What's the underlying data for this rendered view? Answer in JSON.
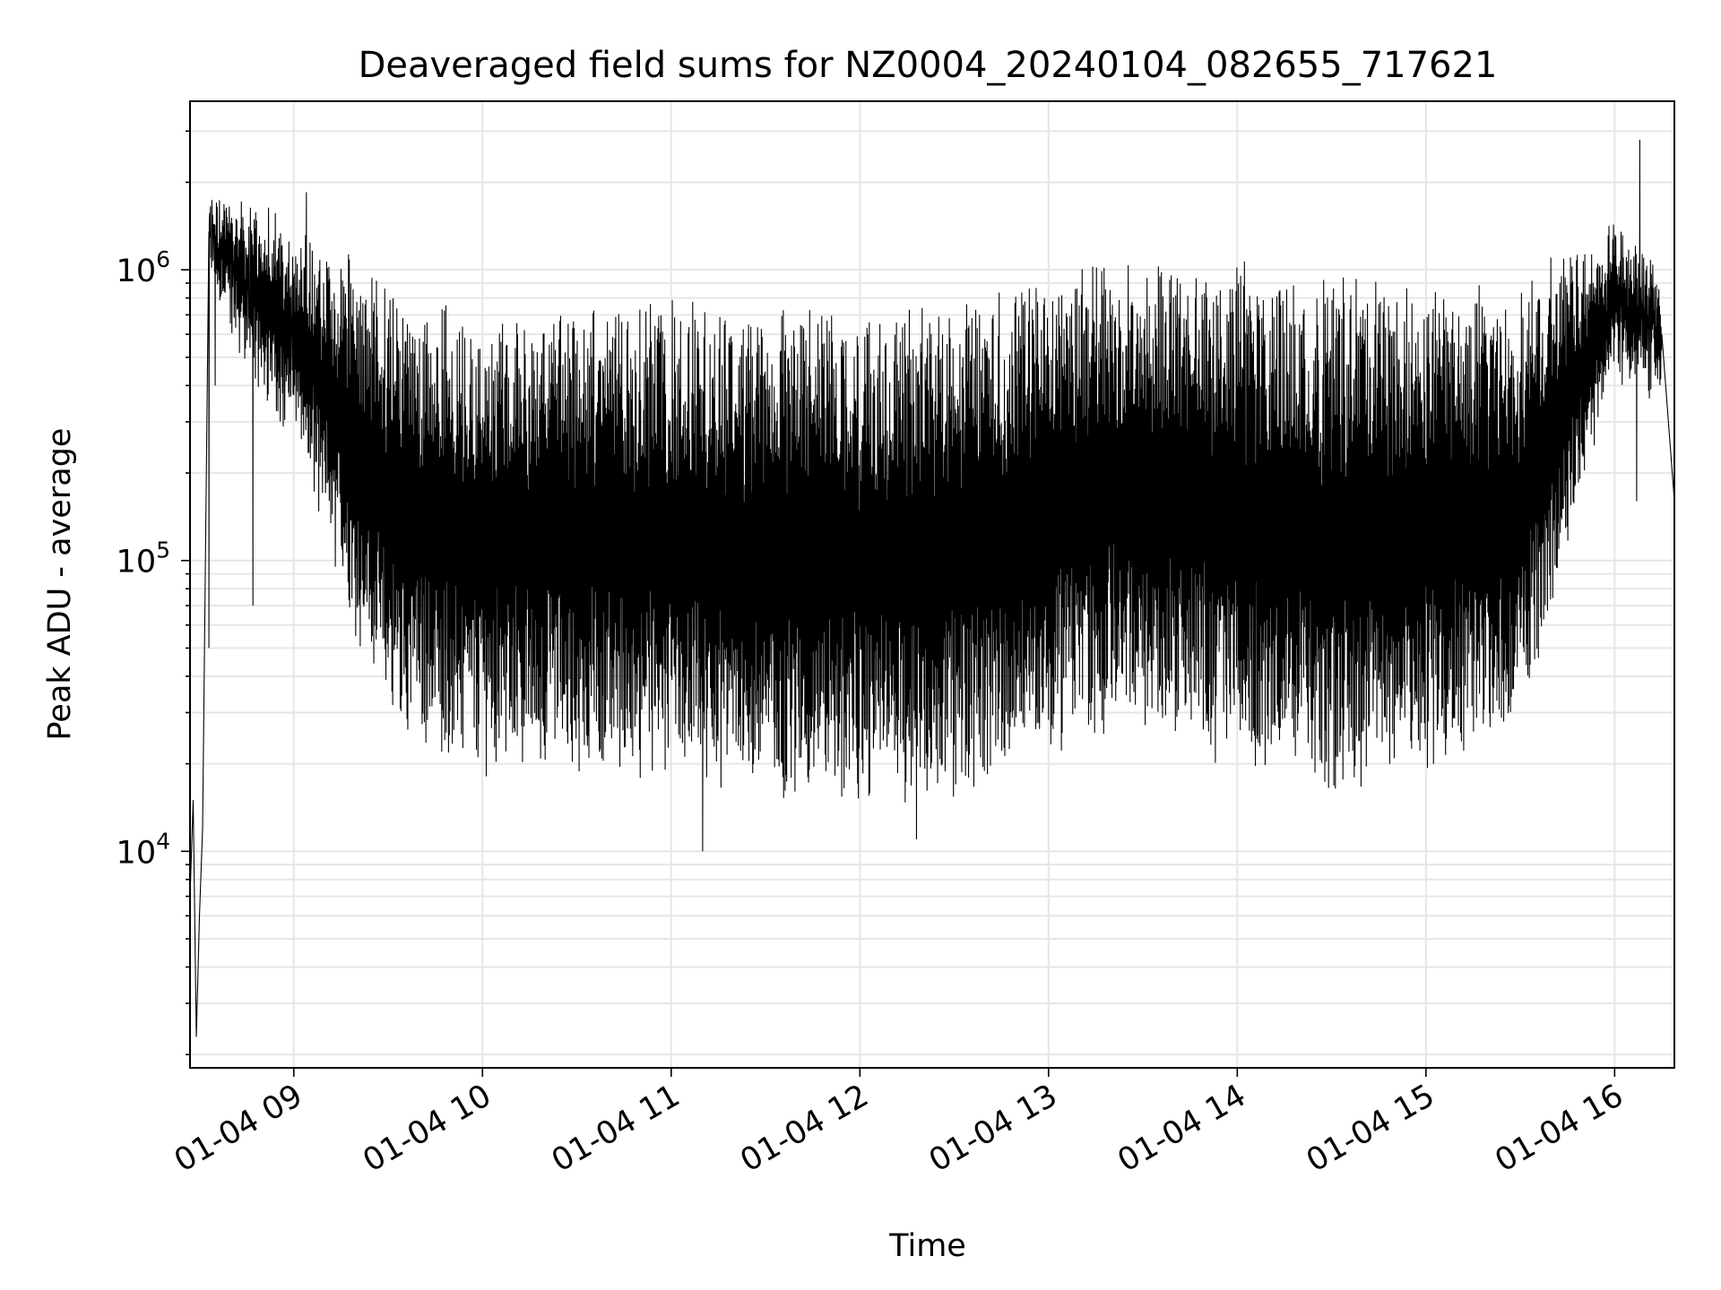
{
  "chart_data": {
    "type": "line",
    "title": "Deaveraged field sums for NZ0004_20240104_082655_717621",
    "xlabel": "Time",
    "ylabel": "Peak ADU - average",
    "x_scale": "time",
    "y_scale": "log",
    "xlim": [
      "2024-01-04 08:27",
      "2024-01-04 16:19"
    ],
    "ylim": [
      1800,
      3800000
    ],
    "grid": true,
    "legend": "none",
    "colors": {
      "line": "#000000",
      "grid": "#e6e6e6",
      "axes": "#000000"
    },
    "x_ticks": [
      "01-04 09",
      "01-04 10",
      "01-04 11",
      "01-04 12",
      "01-04 13",
      "01-04 14",
      "01-04 15",
      "01-04 16"
    ],
    "y_ticks": [
      {
        "base": "10",
        "exp": "4",
        "value": 10000
      },
      {
        "base": "10",
        "exp": "5",
        "value": 100000
      },
      {
        "base": "10",
        "exp": "6",
        "value": 1000000
      }
    ],
    "series": [
      {
        "note": "dense oscillating signal; upper and lower envelopes of the oscillation, plus point extremes",
        "upper_envelope": [
          {
            "x": "2024-01-04 08:33",
            "y": 1600000
          },
          {
            "x": "2024-01-04 08:45",
            "y": 1500000
          },
          {
            "x": "2024-01-04 09:00",
            "y": 1300000
          },
          {
            "x": "2024-01-04 09:30",
            "y": 800000
          },
          {
            "x": "2024-01-04 10:00",
            "y": 600000
          },
          {
            "x": "2024-01-04 10:30",
            "y": 700000
          },
          {
            "x": "2024-01-04 11:00",
            "y": 700000
          },
          {
            "x": "2024-01-04 11:30",
            "y": 650000
          },
          {
            "x": "2024-01-04 12:00",
            "y": 650000
          },
          {
            "x": "2024-01-04 12:30",
            "y": 700000
          },
          {
            "x": "2024-01-04 13:00",
            "y": 900000
          },
          {
            "x": "2024-01-04 13:30",
            "y": 1000000
          },
          {
            "x": "2024-01-04 14:00",
            "y": 950000
          },
          {
            "x": "2024-01-04 14:30",
            "y": 800000
          },
          {
            "x": "2024-01-04 15:00",
            "y": 750000
          },
          {
            "x": "2024-01-04 15:30",
            "y": 800000
          },
          {
            "x": "2024-01-04 15:45",
            "y": 1100000
          },
          {
            "x": "2024-01-04 16:00",
            "y": 1200000
          },
          {
            "x": "2024-01-04 16:15",
            "y": 900000
          }
        ],
        "lower_envelope": [
          {
            "x": "2024-01-04 08:33",
            "y": 1100000
          },
          {
            "x": "2024-01-04 08:45",
            "y": 500000
          },
          {
            "x": "2024-01-04 09:00",
            "y": 300000
          },
          {
            "x": "2024-01-04 09:15",
            "y": 90000
          },
          {
            "x": "2024-01-04 09:30",
            "y": 30000
          },
          {
            "x": "2024-01-04 10:00",
            "y": 22000
          },
          {
            "x": "2024-01-04 10:30",
            "y": 22000
          },
          {
            "x": "2024-01-04 11:00",
            "y": 18000
          },
          {
            "x": "2024-01-04 11:30",
            "y": 17000
          },
          {
            "x": "2024-01-04 12:00",
            "y": 16000
          },
          {
            "x": "2024-01-04 12:30",
            "y": 17000
          },
          {
            "x": "2024-01-04 13:00",
            "y": 25000
          },
          {
            "x": "2024-01-04 13:30",
            "y": 30000
          },
          {
            "x": "2024-01-04 14:00",
            "y": 22000
          },
          {
            "x": "2024-01-04 14:30",
            "y": 18000
          },
          {
            "x": "2024-01-04 15:00",
            "y": 22000
          },
          {
            "x": "2024-01-04 15:30",
            "y": 28000
          },
          {
            "x": "2024-01-04 15:45",
            "y": 120000
          },
          {
            "x": "2024-01-04 16:00",
            "y": 500000
          },
          {
            "x": "2024-01-04 16:15",
            "y": 400000
          }
        ],
        "points": [
          {
            "x": "2024-01-04 08:27",
            "y": 7000
          },
          {
            "x": "2024-01-04 08:28",
            "y": 15000
          },
          {
            "x": "2024-01-04 08:29",
            "y": 2300
          },
          {
            "x": "2024-01-04 08:30",
            "y": 6000
          },
          {
            "x": "2024-01-04 08:31",
            "y": 12000
          },
          {
            "x": "2024-01-04 08:33",
            "y": 50000
          },
          {
            "x": "2024-01-04 08:35",
            "y": 400000
          },
          {
            "x": "2024-01-04 08:37",
            "y": 1200000
          },
          {
            "x": "2024-01-04 08:38",
            "y": 1600000
          },
          {
            "x": "2024-01-04 08:47",
            "y": 70000
          },
          {
            "x": "2024-01-04 09:04",
            "y": 1850000
          },
          {
            "x": "2024-01-04 11:10",
            "y": 10000
          },
          {
            "x": "2024-01-04 12:18",
            "y": 11000
          },
          {
            "x": "2024-01-04 16:07",
            "y": 160000
          },
          {
            "x": "2024-01-04 16:08",
            "y": 2800000
          },
          {
            "x": "2024-01-04 16:15",
            "y": 600000
          },
          {
            "x": "2024-01-04 16:19",
            "y": 160000
          }
        ]
      }
    ]
  }
}
